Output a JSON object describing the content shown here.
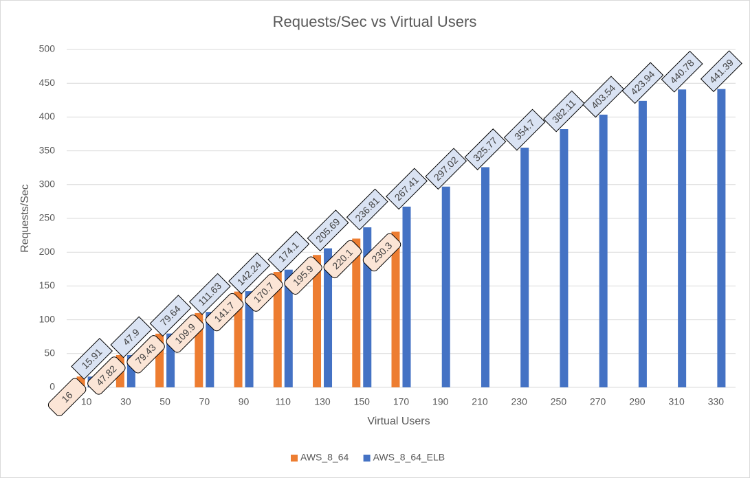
{
  "chart_data": {
    "type": "bar",
    "title": "Requests/Sec vs Virtual Users",
    "x_label": "Virtual Users",
    "y_label": "Requests/Sec",
    "categories": [
      "10",
      "30",
      "50",
      "70",
      "90",
      "110",
      "130",
      "150",
      "170",
      "190",
      "210",
      "230",
      "250",
      "270",
      "290",
      "310",
      "330"
    ],
    "series": [
      {
        "name": "AWS_8_64",
        "color": "#ed7d31",
        "label_fill": "#fbe5d6",
        "values": [
          16,
          47.82,
          79.43,
          109.9,
          141.7,
          170.7,
          195.9,
          220.1,
          230.3,
          null,
          null,
          null,
          null,
          null,
          null,
          null,
          null
        ]
      },
      {
        "name": "AWS_8_64_ELB",
        "color": "#4472c4",
        "label_fill": "#dae3f3",
        "values": [
          15.91,
          47.9,
          79.64,
          111.63,
          142.24,
          174.1,
          205.69,
          236.81,
          267.41,
          297.02,
          325.77,
          354.7,
          382.11,
          403.54,
          423.94,
          440.78,
          441.39
        ]
      }
    ],
    "ylim": [
      0,
      500
    ],
    "yticks": [
      0,
      50,
      100,
      150,
      200,
      250,
      300,
      350,
      400,
      450,
      500
    ],
    "grid": true,
    "legend": "bottom"
  }
}
